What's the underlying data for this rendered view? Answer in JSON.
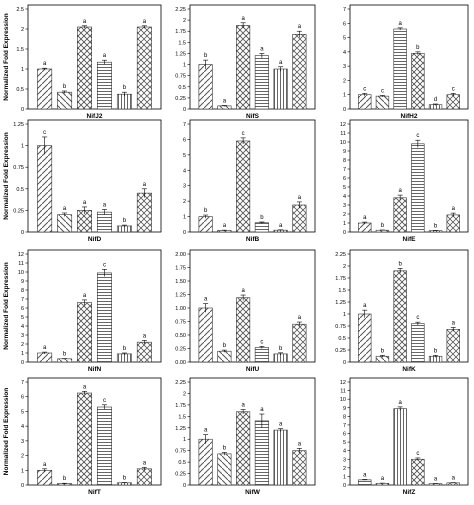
{
  "colors": {
    "frame": "#000000",
    "bar_stroke": "#333333",
    "bar_fill": "#ffffff",
    "pattern_ink": "#555555"
  },
  "chart_data": [
    {
      "type": "bar",
      "title": "",
      "xlabel": "NifJ2",
      "ylabel": "Normalized Fold Expression",
      "ylim": [
        0,
        2.5
      ],
      "yticks": [
        "0",
        "0.5",
        "1",
        "1.5",
        "2",
        "2.5"
      ],
      "values": [
        1.0,
        0.42,
        2.05,
        1.17,
        0.37,
        2.05
      ],
      "errors": [
        0.02,
        0.03,
        0.03,
        0.05,
        0.05,
        0.03
      ],
      "letters": [
        "a",
        "b",
        "a",
        "a",
        "b",
        "a"
      ],
      "patterns": [
        "diag-right",
        "diag-left",
        "cross",
        "horizontal",
        "vertical",
        "diag-cross"
      ]
    },
    {
      "type": "bar",
      "title": "",
      "xlabel": "NifS",
      "ylabel": "",
      "ylim": [
        0,
        2.25
      ],
      "yticks": [
        "0",
        "0.25",
        "0.5",
        "0.75",
        "1",
        "1.25",
        "1.5",
        "1.75",
        "2",
        "2.25"
      ],
      "values": [
        1.0,
        0.07,
        1.88,
        1.2,
        0.9,
        1.68
      ],
      "errors": [
        0.1,
        0.01,
        0.06,
        0.05,
        0.05,
        0.07
      ],
      "letters": [
        "b",
        "a",
        "a",
        "a",
        "a",
        "a"
      ],
      "patterns": [
        "diag-right",
        "diag-left",
        "cross",
        "horizontal",
        "vertical",
        "diag-cross"
      ]
    },
    {
      "type": "bar",
      "title": "",
      "xlabel": "NifH2",
      "ylabel": "",
      "ylim": [
        0,
        7
      ],
      "yticks": [
        "0",
        "1",
        "2",
        "3",
        "4",
        "5",
        "6",
        "7"
      ],
      "values": [
        1.0,
        0.9,
        5.6,
        3.9,
        0.3,
        1.0
      ],
      "errors": [
        0.1,
        0.05,
        0.08,
        0.1,
        0.05,
        0.1
      ],
      "letters": [
        "c",
        "c",
        "a",
        "b",
        "d",
        "c"
      ],
      "patterns": [
        "diag-right",
        "diag-left",
        "horizontal",
        "cross",
        "vertical",
        "diag-cross"
      ]
    },
    {
      "type": "bar",
      "title": "",
      "xlabel": "NifD",
      "ylabel": "Normalized Fold Expression",
      "ylim": [
        0,
        1.25
      ],
      "yticks": [
        "0",
        "0.25",
        "0.5",
        "0.75",
        "1",
        "1.25"
      ],
      "values": [
        1.0,
        0.2,
        0.25,
        0.23,
        0.07,
        0.45
      ],
      "errors": [
        0.1,
        0.02,
        0.04,
        0.03,
        0.01,
        0.05
      ],
      "letters": [
        "c",
        "a",
        "a",
        "a",
        "b",
        "a"
      ],
      "patterns": [
        "diag-right",
        "diag-left",
        "cross",
        "horizontal",
        "vertical",
        "diag-cross"
      ]
    },
    {
      "type": "bar",
      "title": "",
      "xlabel": "NifB",
      "ylabel": "",
      "ylim": [
        0,
        7
      ],
      "yticks": [
        "0",
        "1",
        "2",
        "3",
        "4",
        "5",
        "6",
        "7"
      ],
      "values": [
        1.0,
        0.1,
        5.9,
        0.6,
        0.12,
        1.75
      ],
      "errors": [
        0.1,
        0.02,
        0.2,
        0.05,
        0.02,
        0.2
      ],
      "letters": [
        "b",
        "a",
        "c",
        "b",
        "a",
        "a"
      ],
      "patterns": [
        "diag-right",
        "diag-left",
        "cross",
        "horizontal",
        "vertical",
        "diag-cross"
      ]
    },
    {
      "type": "bar",
      "title": "",
      "xlabel": "NifE",
      "ylabel": "",
      "ylim": [
        0,
        12
      ],
      "yticks": [
        "0",
        "1",
        "2",
        "3",
        "4",
        "5",
        "6",
        "7",
        "8",
        "9",
        "10",
        "11",
        "12"
      ],
      "values": [
        1.0,
        0.2,
        3.8,
        9.8,
        0.15,
        1.9
      ],
      "errors": [
        0.1,
        0.02,
        0.3,
        0.4,
        0.02,
        0.2
      ],
      "letters": [
        "a",
        "b",
        "a",
        "c",
        "b",
        "a"
      ],
      "patterns": [
        "diag-right",
        "diag-left",
        "cross",
        "horizontal",
        "vertical",
        "diag-cross"
      ]
    },
    {
      "type": "bar",
      "title": "",
      "xlabel": "NifN",
      "ylabel": "Normalized Fold Expression",
      "ylim": [
        0,
        12
      ],
      "yticks": [
        "0",
        "1",
        "2",
        "3",
        "4",
        "5",
        "6",
        "7",
        "8",
        "9",
        "10",
        "11",
        "12"
      ],
      "values": [
        1.0,
        0.35,
        6.6,
        9.9,
        0.9,
        2.2
      ],
      "errors": [
        0.1,
        0.03,
        0.3,
        0.4,
        0.1,
        0.2
      ],
      "letters": [
        "a",
        "b",
        "a",
        "c",
        "b",
        "a"
      ],
      "patterns": [
        "diag-right",
        "diag-left",
        "cross",
        "horizontal",
        "vertical",
        "diag-cross"
      ]
    },
    {
      "type": "bar",
      "title": "",
      "xlabel": "NifU",
      "ylabel": "",
      "ylim": [
        0,
        2.0
      ],
      "yticks": [
        "0.00",
        "0.25",
        "0.50",
        "0.75",
        "1.00",
        "1.25",
        "1.50",
        "1.75",
        "2.00"
      ],
      "values": [
        1.0,
        0.2,
        1.19,
        0.27,
        0.15,
        0.7
      ],
      "errors": [
        0.08,
        0.02,
        0.05,
        0.02,
        0.02,
        0.04
      ],
      "letters": [
        "a",
        "b",
        "a",
        "c",
        "b",
        "a"
      ],
      "patterns": [
        "diag-right",
        "diag-left",
        "cross",
        "horizontal",
        "vertical",
        "diag-cross"
      ]
    },
    {
      "type": "bar",
      "title": "",
      "xlabel": "NifK",
      "ylabel": "",
      "ylim": [
        0,
        2.25
      ],
      "yticks": [
        "0",
        "0.25",
        "0.5",
        "0.75",
        "1",
        "1.25",
        "1.5",
        "1.75",
        "2",
        "2.25"
      ],
      "values": [
        1.0,
        0.12,
        1.9,
        0.8,
        0.12,
        0.68
      ],
      "errors": [
        0.08,
        0.02,
        0.05,
        0.03,
        0.02,
        0.04
      ],
      "letters": [
        "a",
        "b",
        "b",
        "c",
        "b",
        "a"
      ],
      "patterns": [
        "diag-right",
        "diag-left",
        "cross",
        "horizontal",
        "vertical",
        "diag-cross"
      ]
    },
    {
      "type": "bar",
      "title": "",
      "xlabel": "NifT",
      "ylabel": "Normalized Fold Expression",
      "ylim": [
        0,
        7
      ],
      "yticks": [
        "0",
        "1",
        "2",
        "3",
        "4",
        "5",
        "6",
        "7"
      ],
      "values": [
        1.0,
        0.1,
        6.25,
        5.3,
        0.15,
        1.1
      ],
      "errors": [
        0.1,
        0.02,
        0.12,
        0.15,
        0.02,
        0.1
      ],
      "letters": [
        "a",
        "b",
        "a",
        "c",
        "b",
        "a"
      ],
      "patterns": [
        "diag-right",
        "diag-left",
        "cross",
        "horizontal",
        "vertical",
        "diag-cross"
      ]
    },
    {
      "type": "bar",
      "title": "",
      "xlabel": "NifW",
      "ylabel": "",
      "ylim": [
        0,
        2.25
      ],
      "yticks": [
        "0",
        "0.25",
        "0.5",
        "0.75",
        "1",
        "1.25",
        "1.5",
        "1.75",
        "2",
        "2.25"
      ],
      "values": [
        1.0,
        0.68,
        1.6,
        1.4,
        1.2,
        0.75
      ],
      "errors": [
        0.1,
        0.03,
        0.05,
        0.15,
        0.03,
        0.05
      ],
      "letters": [
        "a",
        "b",
        "a",
        "a",
        "a",
        "a"
      ],
      "patterns": [
        "diag-right",
        "diag-left",
        "cross",
        "horizontal",
        "vertical",
        "diag-cross"
      ]
    },
    {
      "type": "bar",
      "title": "",
      "xlabel": "NifZ",
      "ylabel": "",
      "ylim": [
        0,
        12
      ],
      "yticks": [
        "0",
        "1",
        "2",
        "3",
        "4",
        "5",
        "6",
        "7",
        "8",
        "9",
        "10",
        "11",
        "12"
      ],
      "values": [
        0.6,
        0.2,
        8.9,
        3.0,
        0.15,
        0.25
      ],
      "errors": [
        0.05,
        0.02,
        0.2,
        0.15,
        0.02,
        0.03
      ],
      "letters": [
        "a",
        "a",
        "a",
        "c",
        "a",
        "a"
      ],
      "patterns": [
        "horizontal",
        "diag-left",
        "vertical",
        "cross",
        "diag-right",
        "diag-cross"
      ]
    }
  ]
}
